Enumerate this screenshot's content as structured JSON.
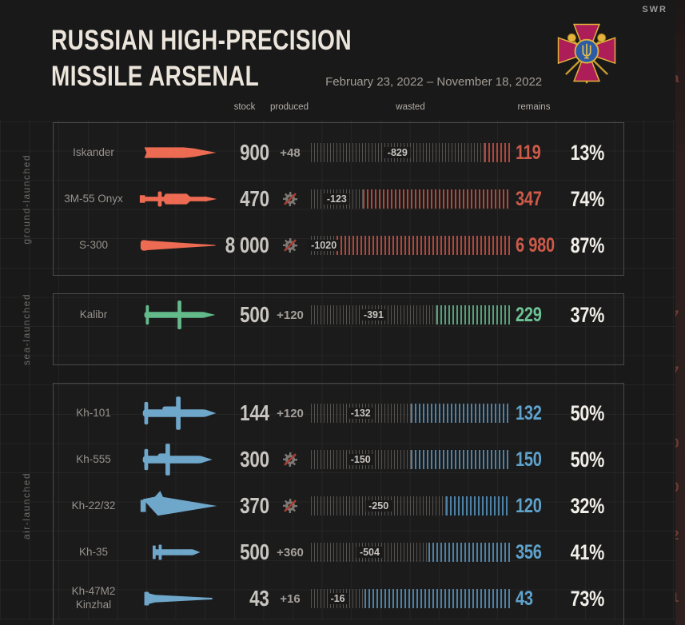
{
  "brand": "SWR",
  "header": {
    "title_line1": "RUSSIAN HIGH-PRECISION",
    "title_line2": "MISSILE ARSENAL",
    "date_range": "February 23, 2022 – November 18, 2022"
  },
  "columns": {
    "stock": "stock",
    "produced": "produced",
    "wasted": "wasted",
    "remains": "remains"
  },
  "icons": {
    "emblem": "ukraine-armed-forces-emblem",
    "no_production": "gear-crossed-icon"
  },
  "colors": {
    "background": "#191919",
    "panel_border": "#4e4a47",
    "wasted_hatch": "#56524e",
    "ground": {
      "missile": "#ee6b53",
      "hatch": "#b2473b",
      "remains": "#ce5a49"
    },
    "sea": {
      "missile": "#63ba8b",
      "hatch": "#55a27a",
      "remains": "#6cc394"
    },
    "air": {
      "missile": "#6fa7cb",
      "hatch": "#4d82a8",
      "remains": "#5fa3cc"
    }
  },
  "groups": [
    {
      "id": "ground",
      "label": "ground-launched",
      "rows": [
        {
          "name": "Iskander",
          "icon": "iskander",
          "stock": "900",
          "produced": "+48",
          "wasted": "-829",
          "remains": "119",
          "percent": "13%"
        },
        {
          "name": "3M-55 Onyx",
          "icon": "onyx",
          "stock": "470",
          "produced": null,
          "wasted": "-123",
          "remains": "347",
          "percent": "74%"
        },
        {
          "name": "S-300",
          "icon": "s300",
          "stock": "8 000",
          "produced": null,
          "wasted": "-1020",
          "remains": "6 980",
          "percent": "87%"
        }
      ]
    },
    {
      "id": "sea",
      "label": "sea-launched",
      "rows": [
        {
          "name": "Kalibr",
          "icon": "kalibr",
          "stock": "500",
          "produced": "+120",
          "wasted": "-391",
          "remains": "229",
          "percent": "37%"
        }
      ]
    },
    {
      "id": "air",
      "label": "air-launched",
      "rows": [
        {
          "name": "Kh-101",
          "icon": "kh101",
          "stock": "144",
          "produced": "+120",
          "wasted": "-132",
          "remains": "132",
          "percent": "50%"
        },
        {
          "name": "Kh-555",
          "icon": "kh555",
          "stock": "300",
          "produced": null,
          "wasted": "-150",
          "remains": "150",
          "percent": "50%"
        },
        {
          "name": "Kh-22/32",
          "icon": "kh2232",
          "stock": "370",
          "produced": null,
          "wasted": "-250",
          "remains": "120",
          "percent": "32%"
        },
        {
          "name": "Kh-35",
          "icon": "kh35",
          "stock": "500",
          "produced": "+360",
          "wasted": "-504",
          "remains": "356",
          "percent": "41%"
        },
        {
          "name": "Kh-47M2",
          "name2": "Kinzhal",
          "icon": "kinzhal",
          "stock": "43",
          "produced": "+16",
          "wasted": "-16",
          "remains": "43",
          "percent": "73%"
        }
      ]
    }
  ],
  "edge_fragments": [
    "a",
    "7",
    "7",
    "0",
    "0",
    "2",
    "1"
  ],
  "chart_data": {
    "type": "table",
    "title": "Russian High-Precision Missile Arsenal",
    "subtitle": "February 23, 2022 – November 18, 2022",
    "columns": [
      "missile",
      "group",
      "stock",
      "produced",
      "wasted",
      "remains",
      "remains_pct"
    ],
    "rows": [
      [
        "Iskander",
        "ground-launched",
        900,
        48,
        829,
        119,
        13
      ],
      [
        "3M-55 Onyx",
        "ground-launched",
        470,
        0,
        123,
        347,
        74
      ],
      [
        "S-300",
        "ground-launched",
        8000,
        0,
        1020,
        6980,
        87
      ],
      [
        "Kalibr",
        "sea-launched",
        500,
        120,
        391,
        229,
        37
      ],
      [
        "Kh-101",
        "air-launched",
        144,
        120,
        132,
        132,
        50
      ],
      [
        "Kh-555",
        "air-launched",
        300,
        0,
        150,
        150,
        50
      ],
      [
        "Kh-22/32",
        "air-launched",
        370,
        0,
        250,
        120,
        32
      ],
      [
        "Kh-35",
        "air-launched",
        500,
        360,
        504,
        356,
        41
      ],
      [
        "Kh-47M2 Kinzhal",
        "air-launched",
        43,
        16,
        16,
        43,
        73
      ]
    ]
  }
}
